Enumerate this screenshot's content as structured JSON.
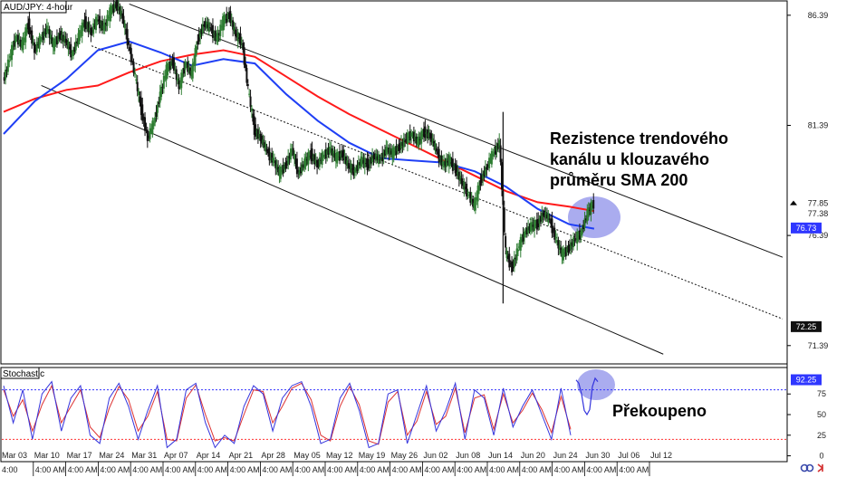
{
  "chart_data": [
    {
      "type": "candlestick",
      "title": "AUD/JPY: 4-hour",
      "ylim": [
        70.6,
        87.0
      ],
      "price_ticks": [
        86.39,
        81.39,
        76.39,
        71.39
      ],
      "price_tags": [
        {
          "value": 77.85,
          "label": "77.85",
          "style": "plain",
          "arrow": true
        },
        {
          "value": 77.38,
          "label": "77.38",
          "style": "plain"
        },
        {
          "value": 76.73,
          "label": "76.73",
          "style": "blue"
        },
        {
          "value": 72.25,
          "label": "72.25",
          "style": "dark"
        }
      ],
      "x_dates": [
        "Mar 03",
        "Mar 10",
        "Mar 17",
        "Mar 24",
        "Mar 31",
        "Apr 07",
        "Apr 14",
        "Apr 21",
        "Apr 28",
        "May 05",
        "May 12",
        "May 19",
        "May 26",
        "Jun 02",
        "Jun 08",
        "Jun 14",
        "Jun 20",
        "Jun 24",
        "Jun 30",
        "Jul 06",
        "Jul 12"
      ],
      "x_times": [
        "4:00",
        "4:00 AM",
        "4:00 AM",
        "4:00 AM",
        "4:00 AM",
        "4:00 AM",
        "4:00 AM",
        "4:00 AM",
        "4:00 AM",
        "4:00 AM",
        "4:00 AM",
        "4:00 AM",
        "4:00 AM",
        "4:00 AM",
        "4:00 AM",
        "4:00 AM",
        "4:00 AM",
        "4:00 AM",
        "4:00 AM",
        "4:00 AM"
      ],
      "close_path": [
        [
          0,
          83.4
        ],
        [
          1,
          84.4
        ],
        [
          2,
          85.4
        ],
        [
          3,
          85.0
        ],
        [
          4,
          86.0
        ],
        [
          5,
          84.8
        ],
        [
          6,
          85.3
        ],
        [
          7,
          85.8
        ],
        [
          8,
          85.0
        ],
        [
          9,
          85.5
        ],
        [
          10,
          85.2
        ],
        [
          11,
          84.6
        ],
        [
          12,
          85.4
        ],
        [
          13,
          86.1
        ],
        [
          14,
          85.6
        ],
        [
          15,
          86.2
        ],
        [
          16,
          85.8
        ],
        [
          17,
          86.5
        ],
        [
          18,
          86.9
        ],
        [
          19,
          86.3
        ],
        [
          20,
          85.0
        ],
        [
          21,
          83.6
        ],
        [
          22,
          82.1
        ],
        [
          23,
          80.8
        ],
        [
          24,
          81.5
        ],
        [
          25,
          82.8
        ],
        [
          26,
          83.9
        ],
        [
          27,
          84.3
        ],
        [
          28,
          83.1
        ],
        [
          29,
          84.2
        ],
        [
          30,
          83.7
        ],
        [
          31,
          85.3
        ],
        [
          32,
          86.0
        ],
        [
          33,
          85.8
        ],
        [
          34,
          85.3
        ],
        [
          35,
          86.1
        ],
        [
          36,
          86.4
        ],
        [
          37,
          85.5
        ],
        [
          38,
          85.2
        ],
        [
          39,
          83.0
        ],
        [
          40,
          81.2
        ],
        [
          41,
          80.8
        ],
        [
          42,
          80.2
        ],
        [
          43,
          79.8
        ],
        [
          44,
          79.2
        ],
        [
          45,
          79.6
        ],
        [
          46,
          80.3
        ],
        [
          47,
          79.2
        ],
        [
          48,
          79.7
        ],
        [
          49,
          80.1
        ],
        [
          50,
          79.6
        ],
        [
          51,
          80.0
        ],
        [
          52,
          80.3
        ],
        [
          53,
          79.9
        ],
        [
          54,
          80.1
        ],
        [
          55,
          79.5
        ],
        [
          56,
          79.3
        ],
        [
          57,
          79.8
        ],
        [
          58,
          79.6
        ],
        [
          59,
          80.0
        ],
        [
          60,
          79.8
        ],
        [
          61,
          80.3
        ],
        [
          62,
          80.1
        ],
        [
          63,
          80.4
        ],
        [
          64,
          80.7
        ],
        [
          65,
          81.0
        ],
        [
          66,
          80.6
        ],
        [
          67,
          81.1
        ],
        [
          68,
          80.9
        ],
        [
          69,
          80.2
        ],
        [
          70,
          79.6
        ],
        [
          71,
          79.8
        ],
        [
          72,
          79.4
        ],
        [
          73,
          78.8
        ],
        [
          74,
          78.3
        ],
        [
          75,
          77.7
        ],
        [
          76,
          78.9
        ],
        [
          77,
          79.5
        ],
        [
          78,
          80.1
        ],
        [
          79,
          80.6
        ],
        [
          80,
          75.6
        ],
        [
          81,
          74.9
        ],
        [
          82,
          75.8
        ],
        [
          83,
          76.5
        ],
        [
          84,
          76.8
        ],
        [
          85,
          76.9
        ],
        [
          86,
          77.4
        ],
        [
          87,
          77.1
        ],
        [
          88,
          76.2
        ],
        [
          89,
          75.5
        ],
        [
          90,
          75.8
        ],
        [
          91,
          76.2
        ],
        [
          92,
          76.5
        ],
        [
          93,
          77.4
        ],
        [
          94,
          77.85
        ]
      ],
      "sma200": [
        [
          0,
          82.0
        ],
        [
          5,
          82.6
        ],
        [
          10,
          83.0
        ],
        [
          15,
          83.2
        ],
        [
          20,
          83.8
        ],
        [
          25,
          84.3
        ],
        [
          30,
          84.6
        ],
        [
          35,
          84.8
        ],
        [
          40,
          84.5
        ],
        [
          45,
          83.6
        ],
        [
          50,
          82.7
        ],
        [
          55,
          81.9
        ],
        [
          60,
          81.2
        ],
        [
          65,
          80.5
        ],
        [
          70,
          79.8
        ],
        [
          75,
          79.1
        ],
        [
          80,
          78.4
        ],
        [
          85,
          77.9
        ],
        [
          90,
          77.7
        ],
        [
          94,
          77.5
        ]
      ],
      "sma100": [
        [
          0,
          81.0
        ],
        [
          5,
          82.5
        ],
        [
          10,
          83.5
        ],
        [
          15,
          84.8
        ],
        [
          20,
          85.2
        ],
        [
          25,
          84.7
        ],
        [
          30,
          84.1
        ],
        [
          35,
          84.4
        ],
        [
          40,
          84.2
        ],
        [
          45,
          82.8
        ],
        [
          50,
          81.6
        ],
        [
          55,
          80.6
        ],
        [
          60,
          79.9
        ],
        [
          65,
          79.8
        ],
        [
          70,
          79.7
        ],
        [
          75,
          79.3
        ],
        [
          80,
          78.6
        ],
        [
          85,
          77.6
        ],
        [
          90,
          76.9
        ],
        [
          94,
          76.7
        ]
      ],
      "channel_upper": [
        [
          20,
          86.9
        ],
        [
          124,
          75.4
        ]
      ],
      "channel_mid": [
        [
          14,
          85.0
        ],
        [
          124,
          72.6
        ]
      ],
      "channel_lower": [
        [
          6,
          83.2
        ],
        [
          105,
          71.0
        ]
      ],
      "annotation": "Rezistence trendového kanálu u klouzavého průměru SMA 200"
    },
    {
      "type": "line",
      "title": "Stochastic",
      "ylim": [
        -6,
        106
      ],
      "y_ticks": [
        75,
        50,
        25,
        0
      ],
      "levels": [
        80,
        20
      ],
      "price_tag": {
        "value": 92.25,
        "label": "92.25"
      },
      "k": [
        85,
        40,
        80,
        20,
        75,
        90,
        30,
        70,
        85,
        25,
        15,
        70,
        88,
        60,
        20,
        55,
        85,
        10,
        20,
        80,
        88,
        40,
        10,
        25,
        15,
        60,
        85,
        75,
        30,
        70,
        85,
        90,
        60,
        15,
        20,
        70,
        88,
        55,
        10,
        15,
        75,
        80,
        15,
        50,
        85,
        30,
        55,
        88,
        20,
        80,
        70,
        25,
        82,
        35,
        60,
        80,
        50,
        20,
        82,
        25
      ],
      "d": [
        80,
        48,
        68,
        30,
        62,
        85,
        40,
        60,
        80,
        35,
        22,
        58,
        84,
        68,
        30,
        48,
        78,
        20,
        18,
        70,
        86,
        50,
        18,
        22,
        18,
        50,
        80,
        78,
        40,
        60,
        82,
        88,
        68,
        25,
        18,
        60,
        84,
        62,
        18,
        14,
        65,
        78,
        25,
        42,
        78,
        38,
        48,
        82,
        28,
        70,
        74,
        32,
        75,
        40,
        55,
        76,
        56,
        28,
        72,
        32
      ],
      "tail": [
        [
          0,
          92
        ],
        [
          3,
          88
        ],
        [
          6,
          75
        ],
        [
          9,
          55
        ],
        [
          12,
          50
        ],
        [
          15,
          56
        ],
        [
          18,
          84
        ],
        [
          21,
          94
        ],
        [
          24,
          90
        ]
      ],
      "annotation": "Překoupeno"
    }
  ],
  "colors": {
    "candle_up": "#2e7d32",
    "candle_down": "#111111",
    "sma200": "#ff1a1a",
    "sma100": "#1f3ff5",
    "channel": "#111111",
    "highlight": "#8e90ea",
    "stoch_k": "#3333dd",
    "stoch_d": "#dd3333",
    "level_top": "#3333ff",
    "level_bottom": "#ff3333",
    "tag_blue": "#2f37ff",
    "tag_dark": "#111111"
  },
  "icons": [
    "link-icon",
    "arrow-right-icon"
  ]
}
